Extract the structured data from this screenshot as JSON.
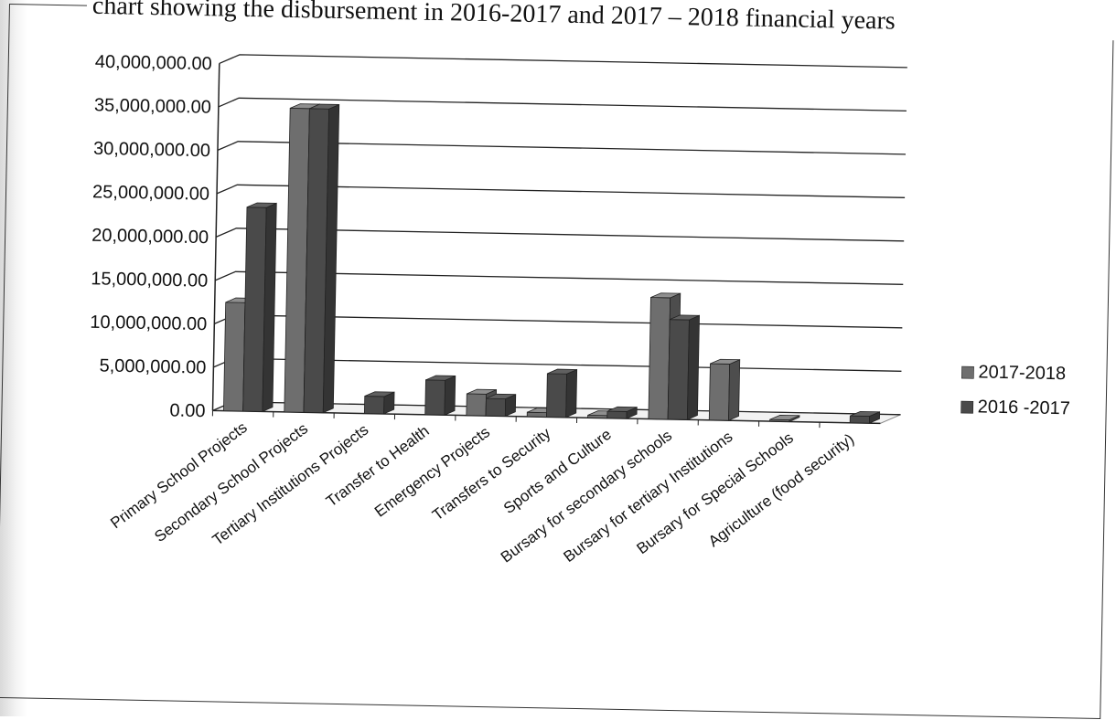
{
  "chart_data": {
    "type": "bar",
    "title": "chart showing the disbursement in 2016-2017 and 2017 – 2018 financial years",
    "xlabel": "",
    "ylabel": "",
    "ylim": [
      0,
      40000000
    ],
    "yticks": [
      "0.00",
      "5,000,000.00",
      "10,000,000.00",
      "15,000,000.00",
      "20,000,000.00",
      "25,000,000.00",
      "30,000,000.00",
      "35,000,000.00",
      "40,000,000.00"
    ],
    "categories": [
      "Primary School Projects",
      "Secondary School Projects",
      "Tertiary Institutions Projects",
      "Transfer to Health",
      "Emergency Projects",
      "Transfers to Security",
      "Sports and Culture",
      "Bursary for secondary schools",
      "Bursary for tertiary Institutions",
      "Bursary for Special Schools",
      "Agriculture (food security)"
    ],
    "series": [
      {
        "name": "2017-2018",
        "values": [
          12500000,
          35000000,
          0,
          0,
          2500000,
          500000,
          300000,
          14000000,
          6500000,
          200000,
          0
        ]
      },
      {
        "name": "2016 -2017",
        "values": [
          23500000,
          35000000,
          2000000,
          4000000,
          2000000,
          5000000,
          800000,
          11500000,
          0,
          0,
          800000
        ]
      }
    ],
    "grid": true,
    "legend": "right",
    "colors": {
      "series1": "#6e6e6e",
      "series2": "#4a4a4a",
      "frame": "#333333"
    }
  }
}
